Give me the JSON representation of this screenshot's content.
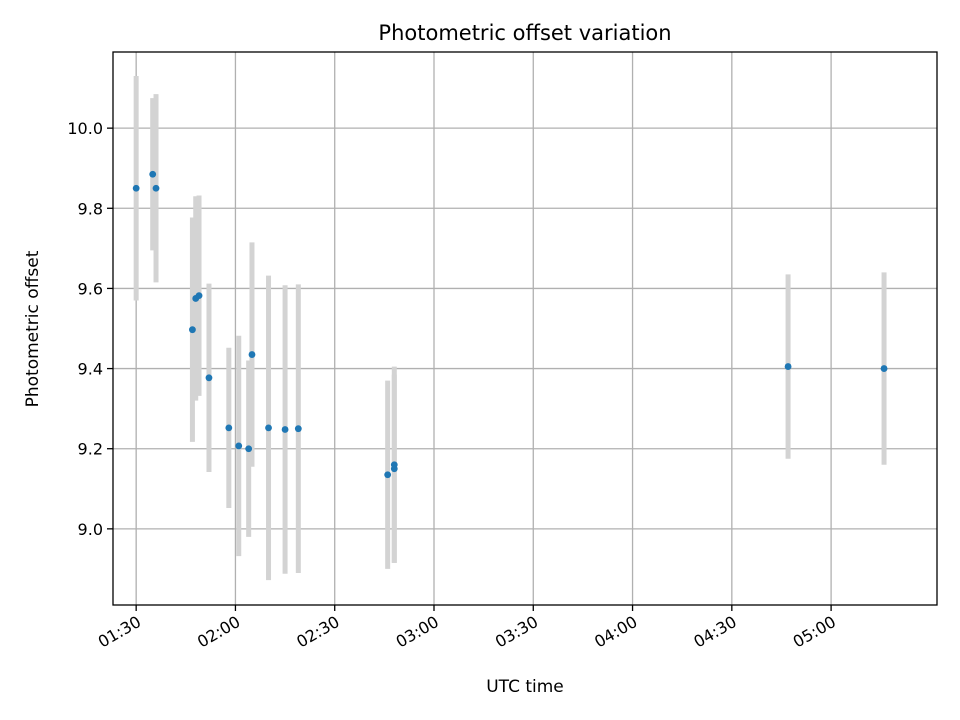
{
  "chart_data": {
    "type": "scatter",
    "title": "Photometric offset variation",
    "xlabel": "UTC time",
    "ylabel": "Photometric offset",
    "xlim": [
      "01:23",
      "05:32"
    ],
    "ylim": [
      8.81,
      10.19
    ],
    "grid": true,
    "x_ticks": [
      "01:30",
      "02:00",
      "02:30",
      "03:00",
      "03:30",
      "04:00",
      "04:30",
      "05:00"
    ],
    "y_ticks": [
      9.0,
      9.2,
      9.4,
      9.6,
      9.8,
      10.0
    ],
    "y_tick_labels": [
      "9.0",
      "9.2",
      "9.4",
      "9.6",
      "9.8",
      "10.0"
    ],
    "points": [
      {
        "x": "01:30",
        "y": 9.85,
        "err": 0.28
      },
      {
        "x": "01:35",
        "y": 9.885,
        "err": 0.19
      },
      {
        "x": "01:36",
        "y": 9.85,
        "err": 0.235
      },
      {
        "x": "01:47",
        "y": 9.497,
        "err": 0.28
      },
      {
        "x": "01:48",
        "y": 9.575,
        "err": 0.255
      },
      {
        "x": "01:49",
        "y": 9.582,
        "err": 0.25
      },
      {
        "x": "01:52",
        "y": 9.377,
        "err": 0.235
      },
      {
        "x": "01:58",
        "y": 9.252,
        "err": 0.2
      },
      {
        "x": "02:01",
        "y": 9.207,
        "err": 0.275
      },
      {
        "x": "02:04",
        "y": 9.2,
        "err": 0.22
      },
      {
        "x": "02:05",
        "y": 9.435,
        "err": 0.28
      },
      {
        "x": "02:10",
        "y": 9.252,
        "err": 0.38
      },
      {
        "x": "02:15",
        "y": 9.248,
        "err": 0.36
      },
      {
        "x": "02:19",
        "y": 9.25,
        "err": 0.36
      },
      {
        "x": "02:46",
        "y": 9.135,
        "err": 0.235
      },
      {
        "x": "02:48",
        "y": 9.16,
        "err": 0.245
      },
      {
        "x": "02:48",
        "y": 9.15,
        "err": 0.235
      },
      {
        "x": "04:47",
        "y": 9.405,
        "err": 0.23
      },
      {
        "x": "05:16",
        "y": 9.4,
        "err": 0.24
      }
    ],
    "colors": {
      "marker": "#1f77b4",
      "errorbar": "#d3d3d3",
      "grid": "#b0b0b0",
      "axes": "#000000",
      "background": "#ffffff"
    }
  }
}
